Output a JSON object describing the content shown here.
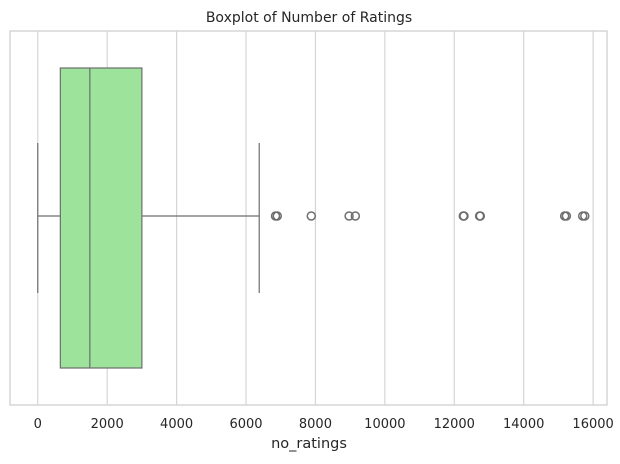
{
  "chart_data": {
    "type": "boxplot",
    "orientation": "horizontal",
    "title": "Boxplot of Number of Ratings",
    "xlabel": "no_ratings",
    "ylabel": "",
    "xlim": [
      -800,
      16400
    ],
    "xticks": [
      0,
      2000,
      4000,
      6000,
      8000,
      10000,
      12000,
      14000,
      16000
    ],
    "grid": "vertical",
    "box": {
      "whisker_low": 0,
      "q1": 650,
      "median": 1500,
      "q3": 3000,
      "whisker_high": 6380
    },
    "outliers": [
      6850,
      6900,
      7880,
      8970,
      9150,
      12260,
      12280,
      12730,
      12750,
      15180,
      15230,
      15700,
      15760
    ],
    "colors": {
      "box_fill": "#9de39b",
      "line": "#6e6e6e",
      "grid": "#d5d5d5",
      "spine": "#cccccc",
      "text": "#262626"
    }
  }
}
